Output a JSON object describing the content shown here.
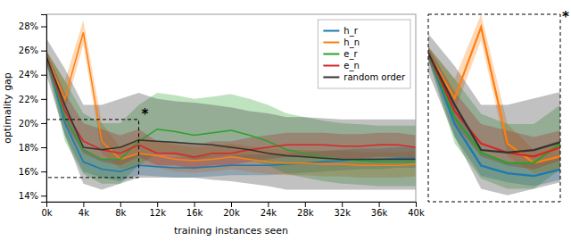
{
  "chart_data": [
    {
      "type": "line",
      "xlabel": "training instances seen",
      "ylabel": "optimality gap",
      "x": [
        0,
        2000,
        4000,
        6000,
        8000,
        10000,
        12000,
        14000,
        16000,
        18000,
        20000,
        22000,
        24000,
        26000,
        28000,
        30000,
        32000,
        34000,
        36000,
        38000,
        40000
      ],
      "xlim": [
        0,
        40000
      ],
      "ylim": [
        13.5,
        29
      ],
      "xticks": [
        {
          "value": 0,
          "label": "0k"
        },
        {
          "value": 4000,
          "label": "4k"
        },
        {
          "value": 8000,
          "label": "8k"
        },
        {
          "value": 12000,
          "label": "12k"
        },
        {
          "value": 16000,
          "label": "16k"
        },
        {
          "value": 20000,
          "label": "20k"
        },
        {
          "value": 24000,
          "label": "24k"
        },
        {
          "value": 28000,
          "label": "28k"
        },
        {
          "value": 32000,
          "label": "32k"
        },
        {
          "value": 36000,
          "label": "36k"
        },
        {
          "value": 40000,
          "label": "40k"
        }
      ],
      "yticks": [
        {
          "value": 14,
          "label": "14%"
        },
        {
          "value": 16,
          "label": "16%"
        },
        {
          "value": 18,
          "label": "18%"
        },
        {
          "value": 20,
          "label": "20%"
        },
        {
          "value": 22,
          "label": "22%"
        },
        {
          "value": 24,
          "label": "24%"
        },
        {
          "value": 26,
          "label": "26%"
        },
        {
          "value": 28,
          "label": "28%"
        }
      ],
      "legend": "upper right",
      "grid": false,
      "series": [
        {
          "name": "h_r",
          "color": "#1f77b4",
          "values": [
            25.5,
            20.0,
            16.8,
            16.2,
            16.0,
            16.5,
            16.4,
            16.3,
            16.3,
            16.4,
            16.5,
            16.5,
            16.5,
            16.6,
            16.7,
            16.8,
            16.9,
            17.0,
            17.0,
            17.1,
            17.1
          ],
          "lower": [
            25.0,
            19.0,
            16.0,
            15.5,
            15.2,
            15.7,
            15.6,
            15.5,
            15.5,
            15.6,
            15.7,
            15.7,
            15.7,
            15.8,
            15.9,
            16.0,
            16.1,
            16.2,
            16.2,
            16.3,
            16.3
          ],
          "upper": [
            26.0,
            21.5,
            17.8,
            17.0,
            17.0,
            17.4,
            17.3,
            17.2,
            17.2,
            17.3,
            17.4,
            17.4,
            17.4,
            17.5,
            17.6,
            17.7,
            17.8,
            17.9,
            17.9,
            18.0,
            18.0
          ]
        },
        {
          "name": "h_n",
          "color": "#ff7f0e",
          "values": [
            25.5,
            22.0,
            27.5,
            18.5,
            17.0,
            17.5,
            17.3,
            17.0,
            16.9,
            17.0,
            17.2,
            17.0,
            16.8,
            16.7,
            16.7,
            16.6,
            16.6,
            16.5,
            16.5,
            16.5,
            16.6
          ],
          "lower": [
            25.0,
            21.0,
            26.5,
            17.5,
            16.2,
            16.5,
            16.3,
            16.0,
            15.9,
            16.0,
            16.2,
            16.0,
            15.8,
            15.7,
            15.7,
            15.6,
            15.6,
            15.5,
            15.5,
            15.5,
            15.6
          ],
          "upper": [
            26.0,
            23.5,
            28.5,
            20.0,
            18.0,
            18.8,
            18.5,
            18.2,
            18.0,
            18.1,
            18.3,
            18.1,
            17.9,
            17.8,
            17.8,
            17.7,
            17.7,
            17.6,
            17.6,
            17.6,
            17.7
          ]
        },
        {
          "name": "e_r",
          "color": "#2ca02c",
          "values": [
            25.5,
            20.5,
            17.8,
            17.0,
            17.0,
            18.5,
            19.5,
            19.3,
            19.0,
            19.2,
            19.4,
            19.0,
            18.5,
            17.8,
            17.5,
            17.2,
            17.0,
            16.9,
            16.8,
            16.8,
            16.8
          ],
          "lower": [
            25.0,
            18.5,
            15.8,
            15.0,
            15.0,
            16.5,
            17.5,
            17.3,
            17.0,
            17.2,
            17.4,
            17.0,
            16.5,
            15.8,
            15.5,
            15.2,
            15.0,
            14.9,
            14.8,
            14.8,
            14.8
          ],
          "upper": [
            26.0,
            23.5,
            20.8,
            20.0,
            20.0,
            21.5,
            22.5,
            22.3,
            22.0,
            22.2,
            22.4,
            22.0,
            21.5,
            20.8,
            20.5,
            20.2,
            20.0,
            19.9,
            19.8,
            19.8,
            19.8
          ]
        },
        {
          "name": "e_n",
          "color": "#d62728",
          "values": [
            25.5,
            21.0,
            18.5,
            17.8,
            17.5,
            18.2,
            17.5,
            17.5,
            17.2,
            17.5,
            17.5,
            17.8,
            18.0,
            18.2,
            18.2,
            18.2,
            18.1,
            18.1,
            18.2,
            18.2,
            18.0
          ],
          "lower": [
            25.0,
            20.0,
            17.5,
            16.8,
            16.5,
            17.2,
            16.5,
            16.5,
            16.2,
            16.5,
            16.5,
            16.8,
            17.0,
            17.2,
            17.2,
            17.2,
            17.1,
            17.1,
            17.2,
            17.2,
            17.0
          ],
          "upper": [
            26.0,
            22.5,
            20.0,
            19.5,
            19.0,
            19.5,
            18.5,
            18.5,
            18.2,
            18.5,
            18.5,
            18.8,
            19.0,
            19.2,
            19.2,
            19.2,
            19.1,
            19.1,
            19.2,
            19.2,
            19.0
          ]
        },
        {
          "name": "random order",
          "color": "#333333",
          "values": [
            25.5,
            21.5,
            18.0,
            17.8,
            18.0,
            18.6,
            18.5,
            18.4,
            18.3,
            18.2,
            18.0,
            17.8,
            17.5,
            17.3,
            17.2,
            17.1,
            17.0,
            17.0,
            17.0,
            17.0,
            17.0
          ],
          "lower": [
            24.0,
            19.0,
            15.0,
            14.5,
            15.0,
            15.5,
            15.5,
            15.5,
            15.5,
            15.3,
            15.2,
            15.0,
            14.8,
            14.5,
            14.5,
            14.5,
            14.5,
            14.5,
            14.5,
            14.5,
            14.5
          ],
          "upper": [
            27.0,
            24.5,
            21.5,
            21.5,
            22.0,
            22.5,
            22.0,
            21.8,
            21.7,
            21.5,
            21.3,
            21.0,
            20.8,
            20.5,
            20.5,
            20.4,
            20.3,
            20.3,
            20.3,
            20.3,
            20.3
          ]
        }
      ],
      "box": {
        "x0": 0,
        "x1": 10000,
        "y0": 15.5,
        "y1": 20.3
      },
      "annotations": [
        "*"
      ]
    },
    {
      "type": "line",
      "x": [
        0,
        2000,
        4000,
        6000,
        8000,
        10000
      ],
      "xlim": [
        0,
        10000
      ],
      "ylim": [
        14,
        28.5
      ],
      "tick_labels": false,
      "grid": false,
      "series": [
        {
          "color": "#1f77b4",
          "values": [
            25.5,
            20.0,
            16.8,
            16.2,
            16.0,
            16.5
          ],
          "lower": [
            25.0,
            19.0,
            16.0,
            15.5,
            15.2,
            15.7
          ],
          "upper": [
            26.0,
            21.5,
            17.8,
            17.0,
            17.0,
            17.4
          ]
        },
        {
          "color": "#ff7f0e",
          "values": [
            25.5,
            22.0,
            27.5,
            18.5,
            17.0,
            17.5
          ],
          "lower": [
            25.0,
            21.0,
            26.5,
            17.5,
            16.2,
            16.5
          ],
          "upper": [
            26.0,
            23.5,
            28.5,
            20.0,
            18.0,
            18.8
          ]
        },
        {
          "color": "#2ca02c",
          "values": [
            25.5,
            20.5,
            17.8,
            17.0,
            17.0,
            18.5
          ],
          "lower": [
            25.0,
            18.5,
            15.8,
            15.0,
            15.0,
            16.5
          ],
          "upper": [
            26.0,
            23.5,
            20.8,
            20.0,
            20.0,
            21.5
          ]
        },
        {
          "color": "#d62728",
          "values": [
            25.5,
            21.0,
            18.5,
            17.8,
            17.5,
            18.2
          ],
          "lower": [
            25.0,
            20.0,
            17.5,
            16.8,
            16.5,
            17.2
          ],
          "upper": [
            26.0,
            22.5,
            20.0,
            19.5,
            19.0,
            19.5
          ]
        },
        {
          "color": "#333333",
          "values": [
            25.5,
            21.5,
            18.0,
            17.8,
            18.0,
            18.6
          ],
          "lower": [
            24.0,
            19.0,
            15.0,
            14.5,
            15.0,
            15.5
          ],
          "upper": [
            27.0,
            24.5,
            21.5,
            21.5,
            22.0,
            22.5
          ]
        }
      ],
      "annotations": [
        "*"
      ]
    }
  ]
}
